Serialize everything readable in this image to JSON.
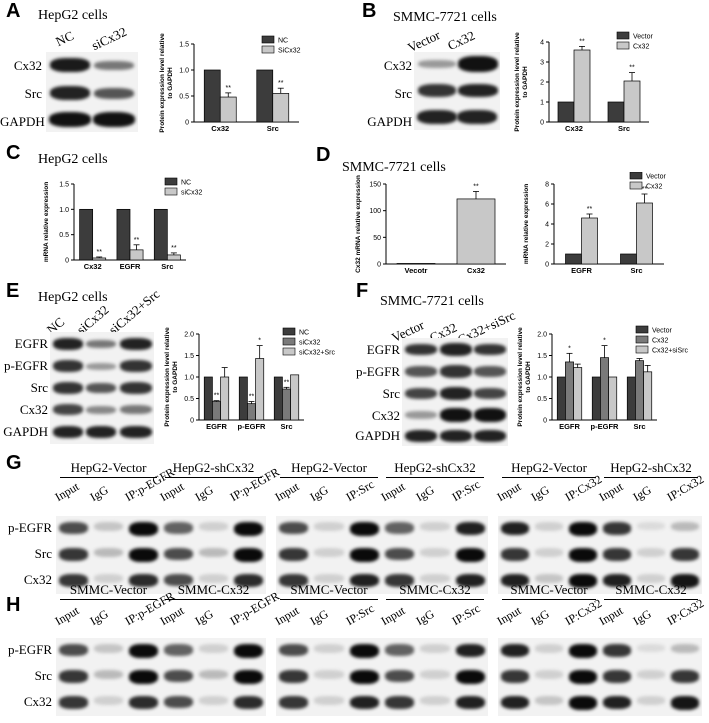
{
  "panels": {
    "A": {
      "letter": "A",
      "cell": "HepG2 cells",
      "lanes": [
        "NC",
        "siCx32"
      ],
      "rows": [
        "Cx32",
        "Src",
        "GAPDH"
      ]
    },
    "B": {
      "letter": "B",
      "cell": "SMMC-7721 cells",
      "lanes": [
        "Vector",
        "Cx32"
      ],
      "rows": [
        "Cx32",
        "Src",
        "GAPDH"
      ]
    },
    "C": {
      "letter": "C",
      "cell": "HepG2 cells"
    },
    "D": {
      "letter": "D",
      "cell": "SMMC-7721 cells"
    },
    "E": {
      "letter": "E",
      "cell": "HepG2 cells",
      "lanes": [
        "NC",
        "siCx32",
        "siCx32+Src"
      ],
      "rows": [
        "EGFR",
        "p-EGFR",
        "Src",
        "Cx32",
        "GAPDH"
      ]
    },
    "F": {
      "letter": "F",
      "cell": "SMMC-7721 cells",
      "lanes": [
        "Vector",
        "Cx32",
        "Cx32+siSrc"
      ],
      "rows": [
        "EGFR",
        "p-EGFR",
        "Src",
        "Cx32",
        "GAPDH"
      ]
    },
    "G": {
      "letter": "G",
      "groups": [
        {
          "a": "HepG2-Vector",
          "b": "HepG2-shCx32",
          "lanes": [
            "Input",
            "IgG",
            "IP:p-EGFR",
            "Input",
            "IgG",
            "IP:p-EGFR"
          ]
        },
        {
          "a": "HepG2-Vector",
          "b": "HepG2-shCx32",
          "lanes": [
            "Input",
            "IgG",
            "IP:Src",
            "Input",
            "IgG",
            "IP:Src"
          ]
        },
        {
          "a": "HepG2-Vector",
          "b": "HepG2-shCx32",
          "lanes": [
            "Input",
            "IgG",
            "IP:Cx32",
            "Input",
            "IgG",
            "IP:Cx32"
          ]
        }
      ],
      "rows": [
        "p-EGFR",
        "Src",
        "Cx32"
      ]
    },
    "H": {
      "letter": "H",
      "groups": [
        {
          "a": "SMMC-Vector",
          "b": "SMMC-Cx32",
          "lanes": [
            "Input",
            "IgG",
            "IP:p-EGFR",
            "Input",
            "IgG",
            "IP:p-EGFR"
          ]
        },
        {
          "a": "SMMC-Vector",
          "b": "SMMC-Cx32",
          "lanes": [
            "Input",
            "IgG",
            "IP:Src",
            "Input",
            "IgG",
            "IP:Src"
          ]
        },
        {
          "a": "SMMC-Vector",
          "b": "SMMC-Cx32",
          "lanes": [
            "Input",
            "IgG",
            "IP:Cx32",
            "Input",
            "IgG",
            "IP:Cx32"
          ]
        }
      ],
      "rows": [
        "p-EGFR",
        "Src",
        "Cx32"
      ]
    }
  },
  "colors": {
    "dark": "#3c3c3c",
    "mid": "#7a7a7a",
    "light": "#c8c8c8"
  },
  "chart_data": [
    {
      "id": "A",
      "type": "bar",
      "categories": [
        "Cx32",
        "Src"
      ],
      "ylabel": "Protein expression level relative to GAPDH",
      "ylim": [
        0,
        1.5
      ],
      "yticks": [
        0,
        0.5,
        1.0,
        1.5
      ],
      "series": [
        {
          "name": "NC",
          "values": [
            1.0,
            1.0
          ],
          "err": [
            0,
            0
          ],
          "sig": [
            "",
            ""
          ]
        },
        {
          "name": "SiCx32",
          "values": [
            0.48,
            0.55
          ],
          "err": [
            0.08,
            0.1
          ],
          "sig": [
            "**",
            "**"
          ]
        }
      ]
    },
    {
      "id": "B",
      "type": "bar",
      "categories": [
        "Cx32",
        "Src"
      ],
      "ylabel": "Protein expression level relative to GAPDH",
      "ylim": [
        0,
        4
      ],
      "yticks": [
        0,
        1,
        2,
        3,
        4
      ],
      "series": [
        {
          "name": "Vector",
          "values": [
            1.0,
            1.0
          ],
          "err": [
            0,
            0
          ],
          "sig": [
            "",
            ""
          ]
        },
        {
          "name": "Cx32",
          "values": [
            3.6,
            2.05
          ],
          "err": [
            0.18,
            0.42
          ],
          "sig": [
            "**",
            "**"
          ]
        }
      ]
    },
    {
      "id": "C",
      "type": "bar",
      "categories": [
        "Cx32",
        "EGFR",
        "Src"
      ],
      "ylabel": "mRNA relative expression",
      "ylim": [
        0,
        1.5
      ],
      "yticks": [
        0,
        0.5,
        1.0,
        1.5
      ],
      "series": [
        {
          "name": "NC",
          "values": [
            1.0,
            1.0,
            1.0
          ],
          "err": [
            0,
            0,
            0
          ],
          "sig": [
            "",
            "",
            ""
          ]
        },
        {
          "name": "siCx32",
          "values": [
            0.04,
            0.2,
            0.1
          ],
          "err": [
            0.02,
            0.1,
            0.04
          ],
          "sig": [
            "**",
            "**",
            "**"
          ]
        }
      ]
    },
    {
      "id": "D1",
      "type": "bar",
      "categories": [
        "Vecotr",
        "Cx32"
      ],
      "ylabel": "Cx32 mRNA relative expression",
      "ylim": [
        0,
        150
      ],
      "yticks": [
        0,
        50,
        100,
        150
      ],
      "series": [
        {
          "name": "",
          "values": [
            1,
            122
          ],
          "err": [
            0,
            14
          ],
          "sig": [
            "",
            "**"
          ]
        }
      ]
    },
    {
      "id": "D2",
      "type": "bar",
      "categories": [
        "EGFR",
        "Src"
      ],
      "ylabel": "mRNA relative expression",
      "ylim": [
        0,
        8
      ],
      "yticks": [
        0,
        2,
        4,
        6,
        8
      ],
      "series": [
        {
          "name": "Vector",
          "values": [
            1.0,
            1.0
          ],
          "err": [
            0,
            0
          ],
          "sig": [
            "",
            ""
          ]
        },
        {
          "name": "Cx32",
          "values": [
            4.6,
            6.1
          ],
          "err": [
            0.4,
            0.9
          ],
          "sig": [
            "**",
            "**"
          ]
        }
      ]
    },
    {
      "id": "E",
      "type": "bar",
      "categories": [
        "EGFR",
        "p-EGFR",
        "Src"
      ],
      "ylabel": "Protein expression level relative to GAPDH",
      "ylim": [
        0,
        2.0
      ],
      "yticks": [
        0,
        0.5,
        1.0,
        1.5,
        2.0
      ],
      "series": [
        {
          "name": "NC",
          "values": [
            1.0,
            1.0,
            1.0
          ],
          "err": [
            0,
            0,
            0
          ],
          "sig": [
            "",
            "",
            ""
          ]
        },
        {
          "name": "siCx32",
          "values": [
            0.43,
            0.38,
            0.72
          ],
          "err": [
            0.02,
            0.05,
            0.04
          ],
          "sig": [
            "**",
            "**",
            "**"
          ]
        },
        {
          "name": "siCx32+Src",
          "values": [
            1.0,
            1.43,
            1.05
          ],
          "err": [
            0.22,
            0.3,
            0.0
          ],
          "sig": [
            "",
            "*",
            ""
          ]
        }
      ]
    },
    {
      "id": "F",
      "type": "bar",
      "categories": [
        "EGFR",
        "p-EGFR",
        "Src"
      ],
      "ylabel": "Protein expression level relative to GAPDH",
      "ylim": [
        0,
        2.0
      ],
      "yticks": [
        0,
        0.5,
        1.0,
        1.5,
        2.0
      ],
      "series": [
        {
          "name": "Vector",
          "values": [
            1.0,
            1.0,
            1.0
          ],
          "err": [
            0,
            0,
            0
          ],
          "sig": [
            "",
            "",
            ""
          ]
        },
        {
          "name": "Cx32",
          "values": [
            1.35,
            1.45,
            1.38
          ],
          "err": [
            0.2,
            0.28,
            0.05
          ],
          "sig": [
            "*",
            "*",
            "**"
          ]
        },
        {
          "name": "Cx32+siSrc",
          "values": [
            1.22,
            1.0,
            1.12
          ],
          "err": [
            0.08,
            0.0,
            0.15
          ],
          "sig": [
            "",
            "",
            ""
          ]
        }
      ]
    }
  ]
}
